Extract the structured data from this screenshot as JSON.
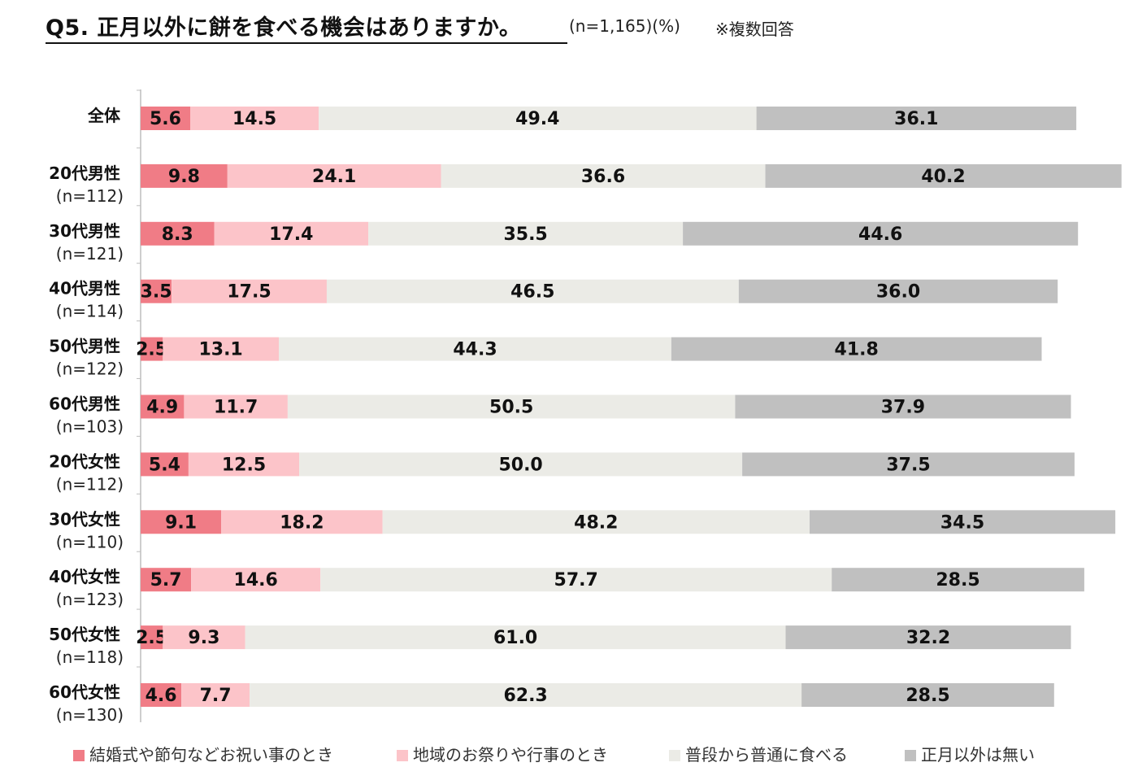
{
  "header": {
    "title": "Q5. 正月以外に餅を食べる機会はありますか。",
    "sample": "(n=1,165)(%)",
    "note": "※複数回答"
  },
  "chart_data": {
    "type": "bar",
    "orientation": "horizontal",
    "stacked": true,
    "title": "Q5. 正月以外に餅を食べる機会はありますか。",
    "categories": [
      "全体",
      "20代男性",
      "30代男性",
      "40代男性",
      "50代男性",
      "60代男性",
      "20代女性",
      "30代女性",
      "40代女性",
      "50代女性",
      "60代女性"
    ],
    "sample_sizes": [
      "",
      "(n=112)",
      "(n=121)",
      "(n=114)",
      "(n=122)",
      "(n=103)",
      "(n=112)",
      "(n=110)",
      "(n=123)",
      "(n=118)",
      "(n=130)"
    ],
    "series": [
      {
        "name": "結婚式や節句などお祝い事のとき",
        "color": "#f07c86",
        "values": [
          5.6,
          9.8,
          8.3,
          3.5,
          2.5,
          4.9,
          5.4,
          9.1,
          5.7,
          2.5,
          4.6
        ]
      },
      {
        "name": "地域のお祭りや行事のとき",
        "color": "#fcc4c9",
        "values": [
          14.5,
          24.1,
          17.4,
          17.5,
          13.1,
          11.7,
          12.5,
          18.2,
          14.6,
          9.3,
          7.7
        ]
      },
      {
        "name": "普段から普通に食べる",
        "color": "#ebebe6",
        "values": [
          49.4,
          36.6,
          35.5,
          46.5,
          44.3,
          50.5,
          50.0,
          48.2,
          57.7,
          61.0,
          62.3
        ]
      },
      {
        "name": "正月以外は無い",
        "color": "#c0c0c0",
        "values": [
          36.1,
          40.2,
          44.6,
          36.0,
          41.8,
          37.9,
          37.5,
          34.5,
          28.5,
          32.2,
          28.5
        ]
      }
    ],
    "value_labels": "inside",
    "legend": "bottom",
    "grid": false
  }
}
